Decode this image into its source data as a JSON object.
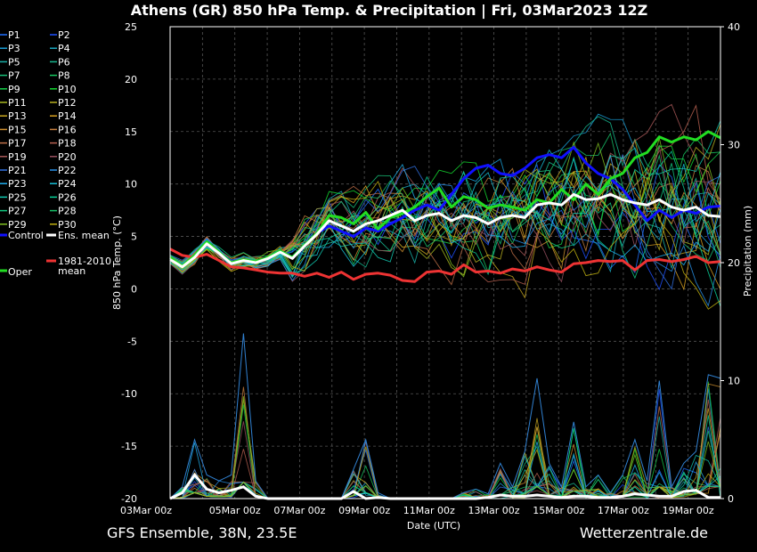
{
  "chart_data": {
    "type": "line",
    "title": "Athens  (GR)  850 hPa Temp. & Precipitation | Fri, 03Mar2023 12Z",
    "footer_left": "GFS Ensemble, 38N, 23.5E",
    "footer_right": "Wetterzentrale.de",
    "xlabel": "Date (UTC)",
    "ylabel_left": "850 hPa Temp. (°C)",
    "ylabel_right": "Precipitation (mm)",
    "ylim_left": [
      -20,
      25
    ],
    "ylim_right": [
      0,
      40
    ],
    "y_ticks_left": [
      25,
      20,
      15,
      10,
      5,
      0,
      -5,
      -10,
      -15,
      -20
    ],
    "y_ticks_right": [
      40,
      30,
      20,
      10,
      0
    ],
    "x_ticks": [
      "03Mar 00z",
      "05Mar 00z",
      "07Mar 00z",
      "09Mar 00z",
      "11Mar 00z",
      "13Mar 00z",
      "15Mar 00z",
      "17Mar 00z",
      "19Mar 00z"
    ],
    "x_range_days": [
      0,
      17
    ],
    "grid": true,
    "legend": {
      "placement": "left",
      "members": [
        "P1",
        "P2",
        "P3",
        "P4",
        "P5",
        "P6",
        "P7",
        "P8",
        "P9",
        "P10",
        "P11",
        "P12",
        "P13",
        "P14",
        "P15",
        "P16",
        "P17",
        "P18",
        "P19",
        "P20",
        "P21",
        "P22",
        "P23",
        "P24",
        "P25",
        "P26",
        "P27",
        "P28",
        "P29",
        "P30"
      ],
      "member_colors": [
        "#1f6fff",
        "#1e50ff",
        "#1a9fd8",
        "#1aa8c0",
        "#19b0a8",
        "#18b890",
        "#17c078",
        "#16c860",
        "#15d048",
        "#14d830",
        "#a8b820",
        "#b8b020",
        "#c8a820",
        "#d8a020",
        "#d09030",
        "#c88040",
        "#c07048",
        "#b86050",
        "#a85858",
        "#985060",
        "#3070e0",
        "#2890e8",
        "#20b0f0",
        "#18c0d8",
        "#10c8b0",
        "#08d098",
        "#10c880",
        "#18c068",
        "#80c020",
        "#c0b010"
      ],
      "control_label": "Control",
      "ensmean_label": "Ens. mean",
      "clim_label": "1981-2010\nmean",
      "oper_label": "Oper"
    },
    "colors": {
      "control": "#1010ff",
      "ens_mean": "#ffffff",
      "clim": "#ee3333",
      "oper": "#22dd22",
      "grid": "#555555"
    },
    "series": [
      {
        "name": "Oper",
        "values": [
          3,
          2.2,
          3.2,
          4.5,
          3.5,
          2.5,
          2.8,
          2.6,
          3,
          3.6,
          3,
          4.2,
          5.3,
          7,
          6.8,
          6.2,
          7.3,
          5.7,
          6.8,
          7.2,
          7.8,
          8.8,
          9.6,
          7.8,
          8.8,
          8.5,
          7.7,
          8,
          7.8,
          7.5,
          8.5,
          8.2,
          9.5,
          8.5,
          10,
          9,
          10.5,
          11,
          12.5,
          13,
          14.5,
          14,
          14.5,
          14.2,
          15,
          14.4
        ]
      },
      {
        "name": "Control",
        "values": [
          3,
          2.2,
          3.2,
          4.5,
          3.5,
          2.5,
          2.8,
          2.6,
          3,
          3.6,
          3,
          4.2,
          5.3,
          6,
          5.5,
          5,
          5.8,
          5.5,
          6.2,
          6.8,
          7.5,
          8,
          7.5,
          9,
          10.5,
          11.5,
          11.8,
          11,
          10.8,
          11.5,
          12.5,
          12.8,
          12.5,
          13.5,
          12,
          11,
          10.5,
          9.5,
          8,
          6.5,
          7.5,
          6.8,
          7.5,
          7.2,
          7.8,
          7.9
        ]
      },
      {
        "name": "Ens. mean",
        "values": [
          2.8,
          2.1,
          3,
          4.3,
          3.4,
          2.4,
          2.7,
          2.5,
          2.9,
          3.5,
          2.9,
          4.1,
          5.2,
          6.5,
          6,
          5.5,
          6.2,
          6.5,
          7,
          7.5,
          6.5,
          7,
          7.2,
          6.5,
          7,
          6.8,
          6.2,
          6.8,
          7,
          6.8,
          8,
          8.2,
          8,
          9,
          8.5,
          8.6,
          9,
          8.5,
          8.2,
          8,
          8.5,
          7.8,
          7.5,
          7.8,
          7,
          6.9
        ]
      },
      {
        "name": "1981-2010 mean",
        "values": [
          3.8,
          3.2,
          3,
          3.3,
          2.7,
          2.1,
          2,
          1.8,
          1.6,
          1.5,
          1.5,
          1.2,
          1.5,
          1.1,
          1.6,
          0.9,
          1.4,
          1.5,
          1.3,
          0.8,
          0.7,
          1.6,
          1.7,
          1.4,
          2.3,
          1.6,
          1.7,
          1.5,
          1.9,
          1.7,
          2.1,
          1.8,
          1.6,
          2.4,
          2.5,
          2.7,
          2.6,
          2.7,
          1.8,
          2.7,
          2.8,
          2.6,
          2.8,
          3.1,
          2.5,
          2.6
        ]
      }
    ],
    "precip_mean": [
      0,
      0.5,
      2,
      0.8,
      0.5,
      0.7,
      1,
      0.2,
      0,
      0,
      0,
      0,
      0,
      0,
      0,
      0.6,
      0,
      0.1,
      0,
      0,
      0,
      0,
      0,
      0,
      0,
      0,
      0.1,
      0.3,
      0.2,
      0.2,
      0.3,
      0.2,
      0.1,
      0.2,
      0.2,
      0.1,
      0.1,
      0.2,
      0.4,
      0.3,
      0.2,
      0.2,
      0.6,
      0.7,
      0.1,
      0.1
    ],
    "precip_peak": [
      0,
      1,
      5,
      2,
      1.5,
      2,
      14,
      1.5,
      0,
      0,
      0,
      0,
      0,
      0,
      0,
      2.5,
      5,
      0.5,
      0,
      0,
      0,
      0,
      0,
      0,
      0.5,
      0.8,
      0.4,
      3,
      1,
      4,
      10.2,
      3,
      1,
      6.5,
      1,
      2,
      0.5,
      2,
      5,
      1.5,
      10,
      1,
      3,
      4,
      10.5,
      10.2
    ]
  }
}
